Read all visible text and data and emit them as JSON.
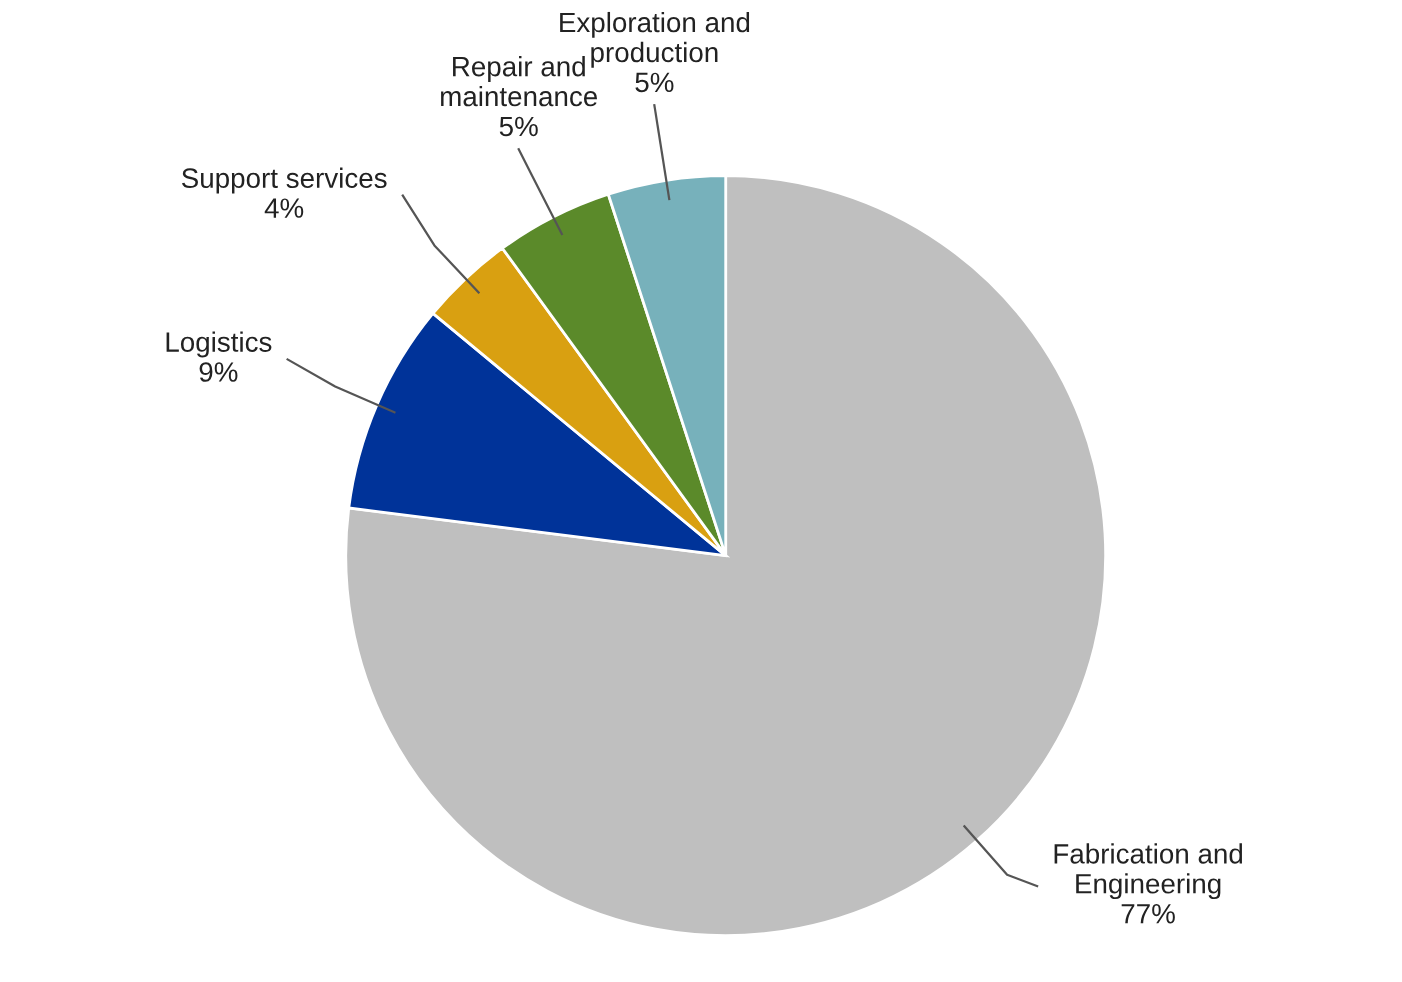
{
  "chart_data": {
    "type": "pie",
    "categories": [
      "Fabrication and\nEngineering",
      "Logistics",
      "Support services",
      "Repair and\nmaintenance",
      "Exploration and\nproduction"
    ],
    "values": [
      77,
      9,
      4,
      5,
      5
    ],
    "value_labels": [
      "77%",
      "9%",
      "4%",
      "5%",
      "5%"
    ],
    "colors": [
      "#bfbfbf",
      "#003399",
      "#d9a011",
      "#5b8a2a",
      "#77b1bb"
    ]
  }
}
